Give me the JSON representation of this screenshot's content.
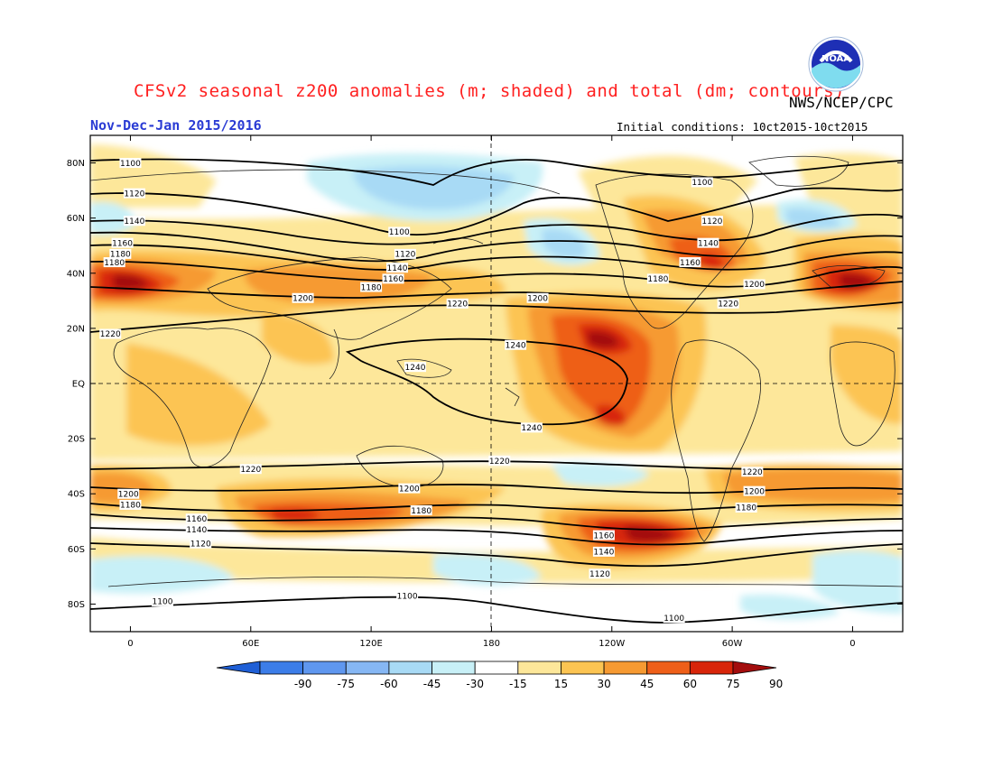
{
  "header": {
    "title": "CFSv2 seasonal z200 anomalies (m; shaded) and total (dm; contours)",
    "agency": "NWS/NCEP/CPC",
    "season": "Nov-Dec-Jan 2015/2016",
    "initial_conditions": "Initial conditions: 10ct2015-10ct2015",
    "logo_text": "NOAA"
  },
  "axes": {
    "lat_ticks": [
      {
        "lat": 80,
        "label": "80N"
      },
      {
        "lat": 60,
        "label": "60N"
      },
      {
        "lat": 40,
        "label": "40N"
      },
      {
        "lat": 20,
        "label": "20N"
      },
      {
        "lat": 0,
        "label": "EQ"
      },
      {
        "lat": -20,
        "label": "20S"
      },
      {
        "lat": -40,
        "label": "40S"
      },
      {
        "lat": -60,
        "label": "60S"
      },
      {
        "lat": -80,
        "label": "80S"
      }
    ],
    "lon_ticks": [
      {
        "lon": 0,
        "label": "0"
      },
      {
        "lon": 60,
        "label": "60E"
      },
      {
        "lon": 120,
        "label": "120E"
      },
      {
        "lon": 180,
        "label": "180"
      },
      {
        "lon": 240,
        "label": "120W"
      },
      {
        "lon": 300,
        "label": "60W"
      },
      {
        "lon": 360,
        "label": "0"
      }
    ],
    "lon_range": [
      -20,
      385
    ],
    "lat_range": [
      -90,
      90
    ]
  },
  "colorbar": {
    "labels": [
      "-90",
      "-75",
      "-60",
      "-45",
      "-30",
      "-15",
      "15",
      "30",
      "45",
      "60",
      "75",
      "90"
    ],
    "colors": [
      "#1f5fd6",
      "#3c7de8",
      "#5f97ef",
      "#86b7f4",
      "#a8daf5",
      "#c8f0f7",
      "#ffffff",
      "#fde79a",
      "#fcc452",
      "#f69a32",
      "#ee5f19",
      "#d8250a",
      "#a30d0d"
    ]
  },
  "contour_labels": [
    {
      "text": "1100",
      "lon": 0,
      "lat": 80
    },
    {
      "text": "1120",
      "lon": 2,
      "lat": 69
    },
    {
      "text": "1140",
      "lon": 2,
      "lat": 59
    },
    {
      "text": "1160",
      "lon": -4,
      "lat": 51
    },
    {
      "text": "1180",
      "lon": -8,
      "lat": 44
    },
    {
      "text": "1180",
      "lon": -5,
      "lat": 47
    },
    {
      "text": "1200",
      "lon": 86,
      "lat": 31
    },
    {
      "text": "1220",
      "lon": -10,
      "lat": 18
    },
    {
      "text": "1100",
      "lon": 134,
      "lat": 55
    },
    {
      "text": "1120",
      "lon": 137,
      "lat": 47
    },
    {
      "text": "1140",
      "lon": 133,
      "lat": 42
    },
    {
      "text": "1160",
      "lon": 131,
      "lat": 38
    },
    {
      "text": "1180",
      "lon": 120,
      "lat": 35
    },
    {
      "text": "1220",
      "lon": 163,
      "lat": 29
    },
    {
      "text": "1240",
      "lon": 142,
      "lat": 6
    },
    {
      "text": "1240",
      "lon": 192,
      "lat": 14
    },
    {
      "text": "1240",
      "lon": 200,
      "lat": -16
    },
    {
      "text": "1200",
      "lon": 203,
      "lat": 31
    },
    {
      "text": "1180",
      "lon": 263,
      "lat": 38
    },
    {
      "text": "1160",
      "lon": 279,
      "lat": 44
    },
    {
      "text": "1140",
      "lon": 288,
      "lat": 51
    },
    {
      "text": "1120",
      "lon": 290,
      "lat": 59
    },
    {
      "text": "1100",
      "lon": 285,
      "lat": 73
    },
    {
      "text": "1200",
      "lon": 311,
      "lat": 36
    },
    {
      "text": "1220",
      "lon": 298,
      "lat": 29
    },
    {
      "text": "1220",
      "lon": 60,
      "lat": -31
    },
    {
      "text": "1220",
      "lon": 184,
      "lat": -28
    },
    {
      "text": "1200",
      "lon": -1,
      "lat": -40
    },
    {
      "text": "1180",
      "lon": 0,
      "lat": -44
    },
    {
      "text": "1160",
      "lon": 33,
      "lat": -49
    },
    {
      "text": "1140",
      "lon": 33,
      "lat": -53
    },
    {
      "text": "1120",
      "lon": 35,
      "lat": -58
    },
    {
      "text": "1200",
      "lon": 139,
      "lat": -38
    },
    {
      "text": "1180",
      "lon": 145,
      "lat": -46
    },
    {
      "text": "1160",
      "lon": 236,
      "lat": -55
    },
    {
      "text": "1140",
      "lon": 236,
      "lat": -61
    },
    {
      "text": "1120",
      "lon": 234,
      "lat": -69
    },
    {
      "text": "1100",
      "lon": 138,
      "lat": -77
    },
    {
      "text": "1100",
      "lon": 16,
      "lat": -79
    },
    {
      "text": "1100",
      "lon": 271,
      "lat": -85
    },
    {
      "text": "1220",
      "lon": 310,
      "lat": -32
    },
    {
      "text": "1200",
      "lon": 311,
      "lat": -39
    },
    {
      "text": "1180",
      "lon": 307,
      "lat": -45
    }
  ]
}
